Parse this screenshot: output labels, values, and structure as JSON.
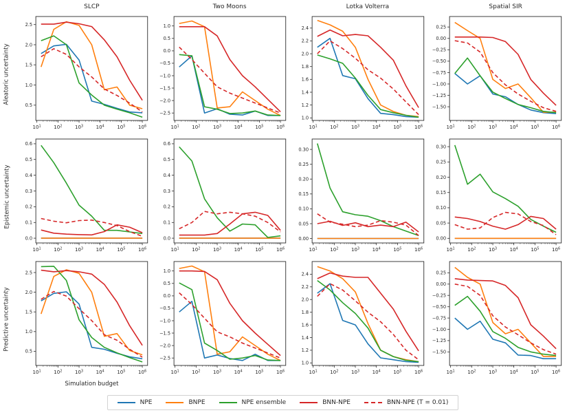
{
  "legend": {
    "items": [
      {
        "label": "NPE",
        "color": "#1f77b4",
        "dashed": false
      },
      {
        "label": "BNPE",
        "color": "#ff7f0e",
        "dashed": false
      },
      {
        "label": "NPE ensemble",
        "color": "#2ca02c",
        "dashed": false
      },
      {
        "label": "BNN-NPE",
        "color": "#d62728",
        "dashed": false
      },
      {
        "label": "BNN-NPE (T = 0.01)",
        "color": "#d62728",
        "dashed": true
      }
    ]
  },
  "chart_data": {
    "type": "line",
    "xscale": "log",
    "xlabel": "Simulation budget",
    "col_titles": [
      "SLCP",
      "Two Moons",
      "Lotka Volterra",
      "Spatial SIR"
    ],
    "row_labels": [
      "Aleatoric uncertainty",
      "Epistemic uncertainty",
      "Predictive uncertainty"
    ],
    "xtick_exponents": [
      1,
      2,
      3,
      4,
      5,
      6
    ],
    "xlim_log10": [
      0.95,
      6.25
    ],
    "x_log10": [
      1.2,
      1.8,
      2.4,
      3.0,
      3.6,
      4.2,
      4.8,
      5.4,
      6.0
    ],
    "tick_sets": {
      "u25": {
        "values": [
          0.5,
          1.0,
          1.5,
          2.0,
          2.5
        ],
        "labels": [
          "0.5",
          "1.0",
          "1.5",
          "2.0",
          "2.5"
        ]
      },
      "tm": {
        "values": [
          1.0,
          0.5,
          0.0,
          -0.5,
          -1.0,
          -1.5,
          -2.0,
          -2.5
        ],
        "labels": [
          "1.0",
          "0.5",
          "0.0",
          "−0.5",
          "−1.0",
          "−1.5",
          "−2.0",
          "−2.5"
        ]
      },
      "lv": {
        "values": [
          1.0,
          1.2,
          1.4,
          1.6,
          1.8,
          2.0,
          2.2,
          2.4
        ],
        "labels": [
          "1.0",
          "1.2",
          "1.4",
          "1.6",
          "1.8",
          "2.0",
          "2.2",
          "2.4"
        ]
      },
      "sir": {
        "values": [
          0.25,
          0.0,
          -0.25,
          -0.5,
          -0.75,
          -1.0,
          -1.25,
          -1.5
        ],
        "labels": [
          "0.25",
          "0.00",
          "−0.25",
          "−0.50",
          "−0.75",
          "−1.00",
          "−1.25",
          "−1.50"
        ]
      },
      "e06": {
        "values": [
          0.0,
          0.1,
          0.2,
          0.3,
          0.4,
          0.5,
          0.6
        ],
        "labels": [
          "0.0",
          "0.1",
          "0.2",
          "0.3",
          "0.4",
          "0.5",
          "0.6"
        ]
      },
      "e03": {
        "values": [
          0.0,
          0.05,
          0.1,
          0.15,
          0.2,
          0.25,
          0.3
        ],
        "labels": [
          "0.00",
          "0.05",
          "0.10",
          "0.15",
          "0.20",
          "0.25",
          "0.30"
        ]
      }
    },
    "subplots": [
      {
        "row": 0,
        "col": 0,
        "title": "SLCP",
        "ylabel": "Aleatoric uncertainty",
        "tick_set": "u25",
        "ylim": [
          0.12,
          2.7
        ],
        "series": {
          "NPE": [
            1.78,
            1.97,
            2.01,
            1.62,
            0.6,
            0.52,
            0.42,
            0.33,
            0.31
          ],
          "BNPE": [
            1.45,
            2.38,
            2.57,
            2.48,
            2.0,
            0.88,
            0.95,
            0.5,
            0.41
          ],
          "NPE ensemble": [
            2.1,
            2.22,
            2.0,
            1.05,
            0.75,
            0.5,
            0.4,
            0.31,
            0.2
          ],
          "BNN-NPE": [
            2.51,
            2.51,
            2.56,
            2.52,
            2.45,
            2.12,
            1.7,
            1.12,
            0.62
          ],
          "BNN-NPE (T = 0.01)": [
            1.7,
            1.9,
            1.76,
            1.45,
            1.2,
            0.9,
            0.74,
            0.55,
            0.33
          ]
        }
      },
      {
        "row": 0,
        "col": 1,
        "title": "Two Moons",
        "ylabel": "Aleatoric uncertainty",
        "tick_set": "tm",
        "ylim": [
          -2.8,
          1.38
        ],
        "series": {
          "NPE": [
            -0.65,
            -0.2,
            -2.5,
            -2.33,
            -2.55,
            -2.58,
            -2.42,
            -2.6,
            -2.6
          ],
          "BNPE": [
            1.1,
            1.2,
            0.97,
            -2.3,
            -2.25,
            -1.65,
            -2.0,
            -2.35,
            -2.6
          ],
          "NPE ensemble": [
            -0.15,
            -0.2,
            -2.25,
            -2.35,
            -2.52,
            -2.5,
            -2.42,
            -2.58,
            -2.6
          ],
          "BNN-NPE": [
            0.97,
            0.97,
            0.97,
            0.6,
            -0.35,
            -1.0,
            -1.45,
            -1.95,
            -2.45
          ],
          "BNN-NPE (T = 0.01)": [
            0.15,
            -0.35,
            -0.9,
            -1.45,
            -1.7,
            -1.9,
            -2.1,
            -2.3,
            -2.5
          ]
        }
      },
      {
        "row": 0,
        "col": 2,
        "title": "Lotka Volterra",
        "ylabel": "Aleatoric uncertainty",
        "tick_set": "lv",
        "ylim": [
          0.96,
          2.58
        ],
        "series": {
          "NPE": [
            2.1,
            2.24,
            1.66,
            1.61,
            1.3,
            1.07,
            1.05,
            1.02,
            1.01
          ],
          "BNPE": [
            2.52,
            2.45,
            2.35,
            2.1,
            1.6,
            1.2,
            1.1,
            1.04,
            1.02
          ],
          "NPE ensemble": [
            1.98,
            1.92,
            1.85,
            1.62,
            1.35,
            1.13,
            1.08,
            1.04,
            1.01
          ],
          "BNN-NPE": [
            2.27,
            2.37,
            2.28,
            2.3,
            2.28,
            2.1,
            1.9,
            1.5,
            1.16
          ],
          "BNN-NPE (T = 0.01)": [
            2.0,
            2.2,
            2.08,
            1.93,
            1.75,
            1.62,
            1.45,
            1.25,
            1.05
          ]
        }
      },
      {
        "row": 0,
        "col": 3,
        "title": "Spatial SIR",
        "ylabel": "Aleatoric uncertainty",
        "tick_set": "sir",
        "ylim": [
          -1.8,
          0.48
        ],
        "series": {
          "NPE": [
            -0.77,
            -1.0,
            -0.82,
            -1.22,
            -1.28,
            -1.45,
            -1.57,
            -1.63,
            -1.65
          ],
          "BNPE": [
            0.35,
            0.17,
            0.0,
            -0.9,
            -1.1,
            -1.0,
            -1.3,
            -1.62,
            -1.62
          ],
          "NPE ensemble": [
            -0.77,
            -0.43,
            -0.82,
            -1.18,
            -1.32,
            -1.45,
            -1.52,
            -1.6,
            -1.63
          ],
          "BNN-NPE": [
            0.03,
            0.03,
            0.03,
            0.02,
            -0.07,
            -0.35,
            -0.9,
            -1.2,
            -1.47
          ],
          "BNN-NPE (T = 0.01)": [
            -0.05,
            -0.1,
            -0.3,
            -0.75,
            -1.02,
            -1.22,
            -1.38,
            -1.52,
            -1.6
          ]
        }
      },
      {
        "row": 1,
        "col": 0,
        "title": "SLCP",
        "ylabel": "Epistemic uncertainty",
        "tick_set": "e06",
        "ylim": [
          -0.03,
          0.63
        ],
        "series": {
          "NPE": [
            0,
            0,
            0,
            0,
            0,
            0,
            0,
            0,
            0
          ],
          "BNPE": [
            0,
            0,
            0,
            0,
            0,
            0,
            0,
            0,
            0
          ],
          "NPE ensemble": [
            0.59,
            0.48,
            0.35,
            0.21,
            0.14,
            0.05,
            0.05,
            0.04,
            0.03
          ],
          "BNN-NPE": [
            0.052,
            0.032,
            0.026,
            0.023,
            0.021,
            0.042,
            0.085,
            0.07,
            0.035
          ],
          "BNN-NPE (T = 0.01)": [
            0.125,
            0.108,
            0.098,
            0.112,
            0.115,
            0.1,
            0.08,
            0.042,
            0.012
          ]
        }
      },
      {
        "row": 1,
        "col": 1,
        "title": "Two Moons",
        "ylabel": "Epistemic uncertainty",
        "tick_set": "e06",
        "ylim": [
          -0.03,
          0.63
        ],
        "series": {
          "NPE": [
            0,
            0,
            0,
            0,
            0,
            0,
            0,
            0,
            0
          ],
          "BNPE": [
            0,
            0,
            0,
            0,
            0,
            0,
            0,
            0,
            0
          ],
          "NPE ensemble": [
            0.58,
            0.49,
            0.25,
            0.13,
            0.045,
            0.09,
            0.085,
            0.005,
            0.015
          ],
          "BNN-NPE": [
            0.02,
            0.02,
            0.02,
            0.03,
            0.09,
            0.155,
            0.165,
            0.145,
            0.05
          ],
          "BNN-NPE (T = 0.01)": [
            0.06,
            0.1,
            0.17,
            0.155,
            0.165,
            0.155,
            0.14,
            0.1,
            0.04
          ]
        }
      },
      {
        "row": 1,
        "col": 2,
        "title": "Lotka Volterra",
        "ylabel": "Epistemic uncertainty",
        "tick_set": "e03",
        "ylim": [
          -0.015,
          0.335
        ],
        "series": {
          "NPE": [
            0,
            0,
            0,
            0,
            0,
            0,
            0,
            0,
            0
          ],
          "BNPE": [
            0,
            0,
            0,
            0,
            0,
            0,
            0,
            0,
            0
          ],
          "NPE ensemble": [
            0.32,
            0.17,
            0.09,
            0.08,
            0.075,
            0.06,
            0.04,
            0.025,
            0.01
          ],
          "BNN-NPE": [
            0.05,
            0.058,
            0.044,
            0.053,
            0.04,
            0.045,
            0.04,
            0.055,
            0.022
          ],
          "BNN-NPE (T = 0.01)": [
            0.083,
            0.055,
            0.048,
            0.04,
            0.045,
            0.06,
            0.055,
            0.045,
            0.01
          ]
        }
      },
      {
        "row": 1,
        "col": 3,
        "title": "Spatial SIR",
        "ylabel": "Epistemic uncertainty",
        "tick_set": "e03",
        "ylim": [
          -0.015,
          0.325
        ],
        "series": {
          "NPE": [
            0,
            0,
            0,
            0,
            0,
            0,
            0,
            0,
            0
          ],
          "BNPE": [
            0,
            0,
            0,
            0,
            0,
            0,
            0,
            0,
            0
          ],
          "NPE ensemble": [
            0.305,
            0.177,
            0.21,
            0.152,
            0.13,
            0.105,
            0.062,
            0.04,
            0.02
          ],
          "BNN-NPE": [
            0.07,
            0.065,
            0.055,
            0.04,
            0.03,
            0.045,
            0.072,
            0.065,
            0.03
          ],
          "BNN-NPE (T = 0.01)": [
            0.045,
            0.03,
            0.034,
            0.068,
            0.085,
            0.08,
            0.055,
            0.042,
            0.012
          ]
        }
      },
      {
        "row": 2,
        "col": 0,
        "title": "SLCP",
        "ylabel": "Predictive uncertainty",
        "tick_set": "u25",
        "ylim": [
          0.14,
          2.78
        ],
        "series": {
          "NPE": [
            1.78,
            1.97,
            2.01,
            1.7,
            0.6,
            0.55,
            0.45,
            0.36,
            0.31
          ],
          "BNPE": [
            1.45,
            2.4,
            2.57,
            2.48,
            2.0,
            0.88,
            0.95,
            0.52,
            0.41
          ],
          "NPE ensemble": [
            2.65,
            2.66,
            2.3,
            1.3,
            0.85,
            0.6,
            0.46,
            0.34,
            0.23
          ],
          "BNN-NPE": [
            2.56,
            2.52,
            2.55,
            2.52,
            2.46,
            2.2,
            1.75,
            1.15,
            0.65
          ],
          "BNN-NPE (T = 0.01)": [
            1.82,
            2.02,
            1.9,
            1.58,
            1.28,
            0.92,
            0.78,
            0.55,
            0.35
          ]
        }
      },
      {
        "row": 2,
        "col": 1,
        "title": "Two Moons",
        "ylabel": "Predictive uncertainty",
        "tick_set": "tm",
        "ylim": [
          -2.8,
          1.38
        ],
        "series": {
          "NPE": [
            -0.65,
            -0.22,
            -2.5,
            -2.38,
            -2.52,
            -2.6,
            -2.35,
            -2.6,
            -2.6
          ],
          "BNPE": [
            1.1,
            1.2,
            0.97,
            -2.35,
            -2.25,
            -1.65,
            -2.0,
            -2.35,
            -2.6
          ],
          "NPE ensemble": [
            0.52,
            0.25,
            -1.9,
            -2.2,
            -2.55,
            -2.5,
            -2.4,
            -2.58,
            -2.6
          ],
          "BNN-NPE": [
            1.0,
            1.0,
            0.98,
            0.65,
            -0.3,
            -1.0,
            -1.5,
            -1.95,
            -2.4
          ],
          "BNN-NPE (T = 0.01)": [
            0.12,
            -0.35,
            -0.9,
            -1.45,
            -1.65,
            -1.9,
            -2.1,
            -2.3,
            -2.5
          ]
        }
      },
      {
        "row": 2,
        "col": 2,
        "title": "Lotka Volterra",
        "ylabel": "Predictive uncertainty",
        "tick_set": "lv",
        "ylim": [
          0.96,
          2.6
        ],
        "series": {
          "NPE": [
            2.1,
            2.25,
            1.67,
            1.6,
            1.3,
            1.08,
            1.05,
            1.02,
            1.01
          ],
          "BNPE": [
            2.52,
            2.45,
            2.33,
            2.12,
            1.62,
            1.2,
            1.1,
            1.05,
            1.02
          ],
          "NPE ensemble": [
            2.3,
            2.15,
            1.95,
            1.78,
            1.55,
            1.2,
            1.1,
            1.04,
            1.02
          ],
          "BNN-NPE": [
            2.33,
            2.42,
            2.37,
            2.35,
            2.35,
            2.1,
            1.85,
            1.5,
            1.19
          ],
          "BNN-NPE (T = 0.01)": [
            2.05,
            2.25,
            2.15,
            1.98,
            1.8,
            1.65,
            1.45,
            1.2,
            1.05
          ]
        }
      },
      {
        "row": 2,
        "col": 3,
        "title": "Spatial SIR",
        "ylabel": "Predictive uncertainty",
        "tick_set": "sir",
        "ylim": [
          -1.8,
          0.5
        ],
        "series": {
          "NPE": [
            -0.75,
            -1.0,
            -0.82,
            -1.22,
            -1.3,
            -1.57,
            -1.58,
            -1.65,
            -1.65
          ],
          "BNPE": [
            0.37,
            0.15,
            0.0,
            -0.85,
            -1.1,
            -1.0,
            -1.3,
            -1.6,
            -1.6
          ],
          "NPE ensemble": [
            -0.47,
            -0.27,
            -0.6,
            -1.05,
            -1.2,
            -1.4,
            -1.5,
            -1.55,
            -1.58
          ],
          "BNN-NPE": [
            0.12,
            0.09,
            0.08,
            0.07,
            -0.03,
            -0.3,
            -0.9,
            -1.15,
            -1.43
          ],
          "BNN-NPE (T = 0.01)": [
            0.0,
            -0.05,
            -0.25,
            -0.7,
            -0.95,
            -1.12,
            -1.3,
            -1.45,
            -1.55
          ]
        }
      }
    ]
  }
}
